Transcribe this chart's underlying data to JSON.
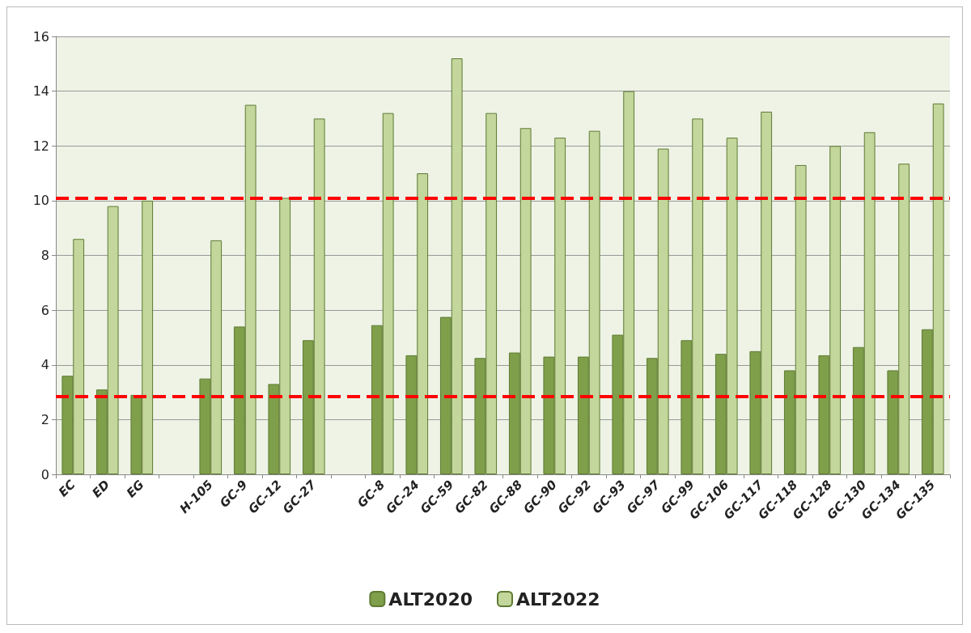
{
  "chart_data": {
    "type": "bar",
    "categories": [
      "EC",
      "ED",
      "EG",
      null,
      "H-105",
      "GC-9",
      "GC-12",
      "GC-27",
      null,
      "GC-8",
      "GC-24",
      "GC-59",
      "GC-82",
      "GC-88",
      "GC-90",
      "GC-92",
      "GC-93",
      "GC-97",
      "GC-99",
      "GC-106",
      "GC-117",
      "GC-118",
      "GC-128",
      "GC-130",
      "GC-134",
      "GC-135"
    ],
    "series": [
      {
        "name": "ALT2020",
        "color": "#7f9f4a",
        "values": [
          3.6,
          3.1,
          2.9,
          null,
          3.5,
          5.4,
          3.3,
          4.9,
          null,
          5.45,
          4.35,
          5.75,
          4.25,
          4.45,
          4.3,
          4.3,
          5.1,
          4.25,
          4.9,
          4.4,
          4.5,
          3.8,
          4.35,
          4.65,
          3.8,
          5.3
        ]
      },
      {
        "name": "ALT2022",
        "color": "#c3d69b",
        "values": [
          8.6,
          9.8,
          10.0,
          null,
          8.55,
          13.5,
          10.1,
          13.0,
          null,
          13.2,
          11.0,
          15.2,
          13.2,
          12.65,
          12.3,
          12.55,
          14.0,
          11.9,
          13.0,
          12.3,
          13.25,
          11.3,
          12.0,
          12.5,
          11.35,
          13.55
        ]
      }
    ],
    "ylim": [
      0,
      16
    ],
    "yticks": [
      0,
      2,
      4,
      6,
      8,
      10,
      12,
      14,
      16
    ],
    "grid": "y",
    "legend": "bottom",
    "ref_lines": [
      {
        "axis": "y",
        "value": 10.1,
        "color": "#ff0000",
        "line_style": "dashed"
      },
      {
        "axis": "y",
        "value": 2.85,
        "color": "#ff0000",
        "line_style": "dashed"
      }
    ]
  }
}
